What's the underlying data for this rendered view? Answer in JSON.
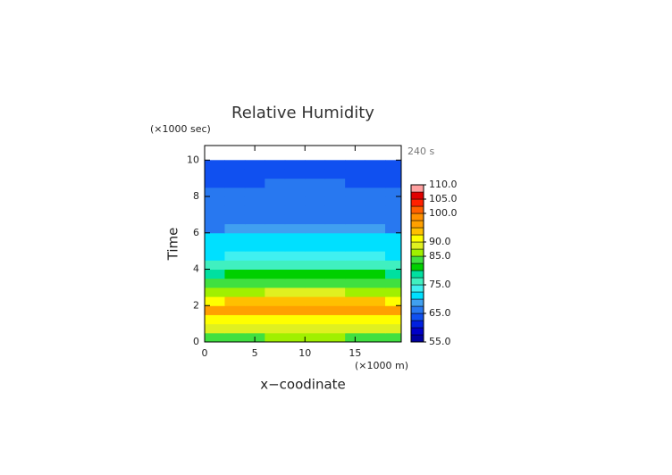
{
  "chart_data": {
    "type": "contour",
    "title": "Relative Humidity",
    "subtitle": "240 s",
    "x_label": "x−coodinate",
    "x_unit": "(×1000 m)",
    "y_label": "Time",
    "y_unit": "(×1000 sec)",
    "x": [
      1,
      3,
      5,
      7,
      9,
      11,
      13,
      15,
      17,
      19
    ],
    "y": [
      0.25,
      0.75,
      1.25,
      1.75,
      2.25,
      2.75,
      3.25,
      3.75,
      4.25,
      4.75,
      5.25,
      5.75,
      6.25,
      6.75,
      7.25,
      7.75,
      8.25,
      8.75,
      9.25,
      9.75
    ],
    "values": [
      [
        84,
        84.5,
        84.5,
        85,
        85,
        85,
        85,
        84.5,
        84.5,
        84
      ],
      [
        89,
        88.5,
        88.5,
        88,
        88,
        88,
        88,
        88.5,
        88.5,
        89
      ],
      [
        92,
        91.5,
        91.5,
        91,
        91,
        91,
        91,
        91.5,
        91.5,
        92
      ],
      [
        95,
        95.5,
        95.5,
        96,
        96,
        96,
        96,
        95.5,
        95.5,
        95
      ],
      [
        91,
        92.5,
        92.5,
        94,
        94,
        94,
        94,
        92.5,
        92.5,
        91
      ],
      [
        86,
        87,
        87,
        88,
        88,
        88,
        88,
        87,
        87,
        86
      ],
      [
        83,
        83.5,
        83.5,
        84,
        84,
        84,
        84,
        83.5,
        83.5,
        83
      ],
      [
        79,
        80,
        80,
        81,
        81,
        81,
        81,
        80,
        80,
        79
      ],
      [
        76,
        76.5,
        76.5,
        77,
        77,
        77,
        77,
        76.5,
        76.5,
        76
      ],
      [
        72,
        73,
        73,
        74,
        74,
        74,
        74,
        73,
        73,
        72
      ],
      [
        71,
        71.5,
        71.5,
        72,
        72,
        72,
        72,
        71.5,
        71.5,
        71
      ],
      [
        70,
        70.5,
        70.5,
        71,
        71,
        71,
        71,
        70.5,
        70.5,
        70
      ],
      [
        67,
        68,
        68,
        69,
        69,
        69,
        69,
        68,
        68,
        67
      ],
      [
        66,
        66,
        66,
        66.5,
        66.5,
        66.5,
        66.5,
        66,
        66,
        66
      ],
      [
        65.5,
        65.5,
        65.5,
        66,
        66,
        66,
        66,
        65.5,
        65.5,
        65.5
      ],
      [
        65,
        65,
        65,
        65.5,
        65.5,
        65.5,
        65.5,
        65,
        65,
        65
      ],
      [
        65,
        65,
        65,
        65,
        65,
        65,
        65,
        65,
        65,
        65
      ],
      [
        64.5,
        64.5,
        64.5,
        65,
        65,
        65,
        65,
        64.5,
        64.5,
        64.5
      ],
      [
        64.5,
        64.5,
        64.5,
        64.5,
        64.5,
        64.5,
        64.5,
        64.5,
        64.5,
        64.5
      ],
      [
        64,
        64,
        64,
        64,
        64,
        64,
        64,
        64,
        64,
        64
      ]
    ],
    "xlim": [
      0,
      19.6
    ],
    "ylim": [
      0,
      10.8
    ],
    "xticks": [
      0,
      5,
      10,
      15
    ],
    "yticks": [
      0,
      2,
      4,
      6,
      8,
      10
    ],
    "levels": [
      55,
      57.5,
      60,
      62.5,
      65,
      67.5,
      70,
      72.5,
      75,
      77.5,
      80,
      82.5,
      85,
      87.5,
      90,
      92.5,
      95,
      97.5,
      100,
      102.5,
      105,
      107.5,
      110
    ],
    "colors": [
      "#0000a0",
      "#0000c8",
      "#0020e0",
      "#1050f0",
      "#2878f0",
      "#40a0f0",
      "#00e0ff",
      "#40f0f0",
      "#40f0c0",
      "#00e0a0",
      "#00d000",
      "#40e040",
      "#a0f000",
      "#e0f020",
      "#ffff00",
      "#ffc000",
      "#ffa000",
      "#ff9000",
      "#ff6000",
      "#ff2000",
      "#e00000",
      "#ffa0a0"
    ],
    "colorbar_ticks": [
      {
        "value": 55,
        "label": "55.0"
      },
      {
        "value": 65,
        "label": "65.0"
      },
      {
        "value": 75,
        "label": "75.0"
      },
      {
        "value": 85,
        "label": "85.0"
      },
      {
        "value": 90,
        "label": "90.0"
      },
      {
        "value": 100,
        "label": "100.0"
      },
      {
        "value": 105,
        "label": "105.0"
      },
      {
        "value": 110,
        "label": "110.0"
      }
    ]
  }
}
